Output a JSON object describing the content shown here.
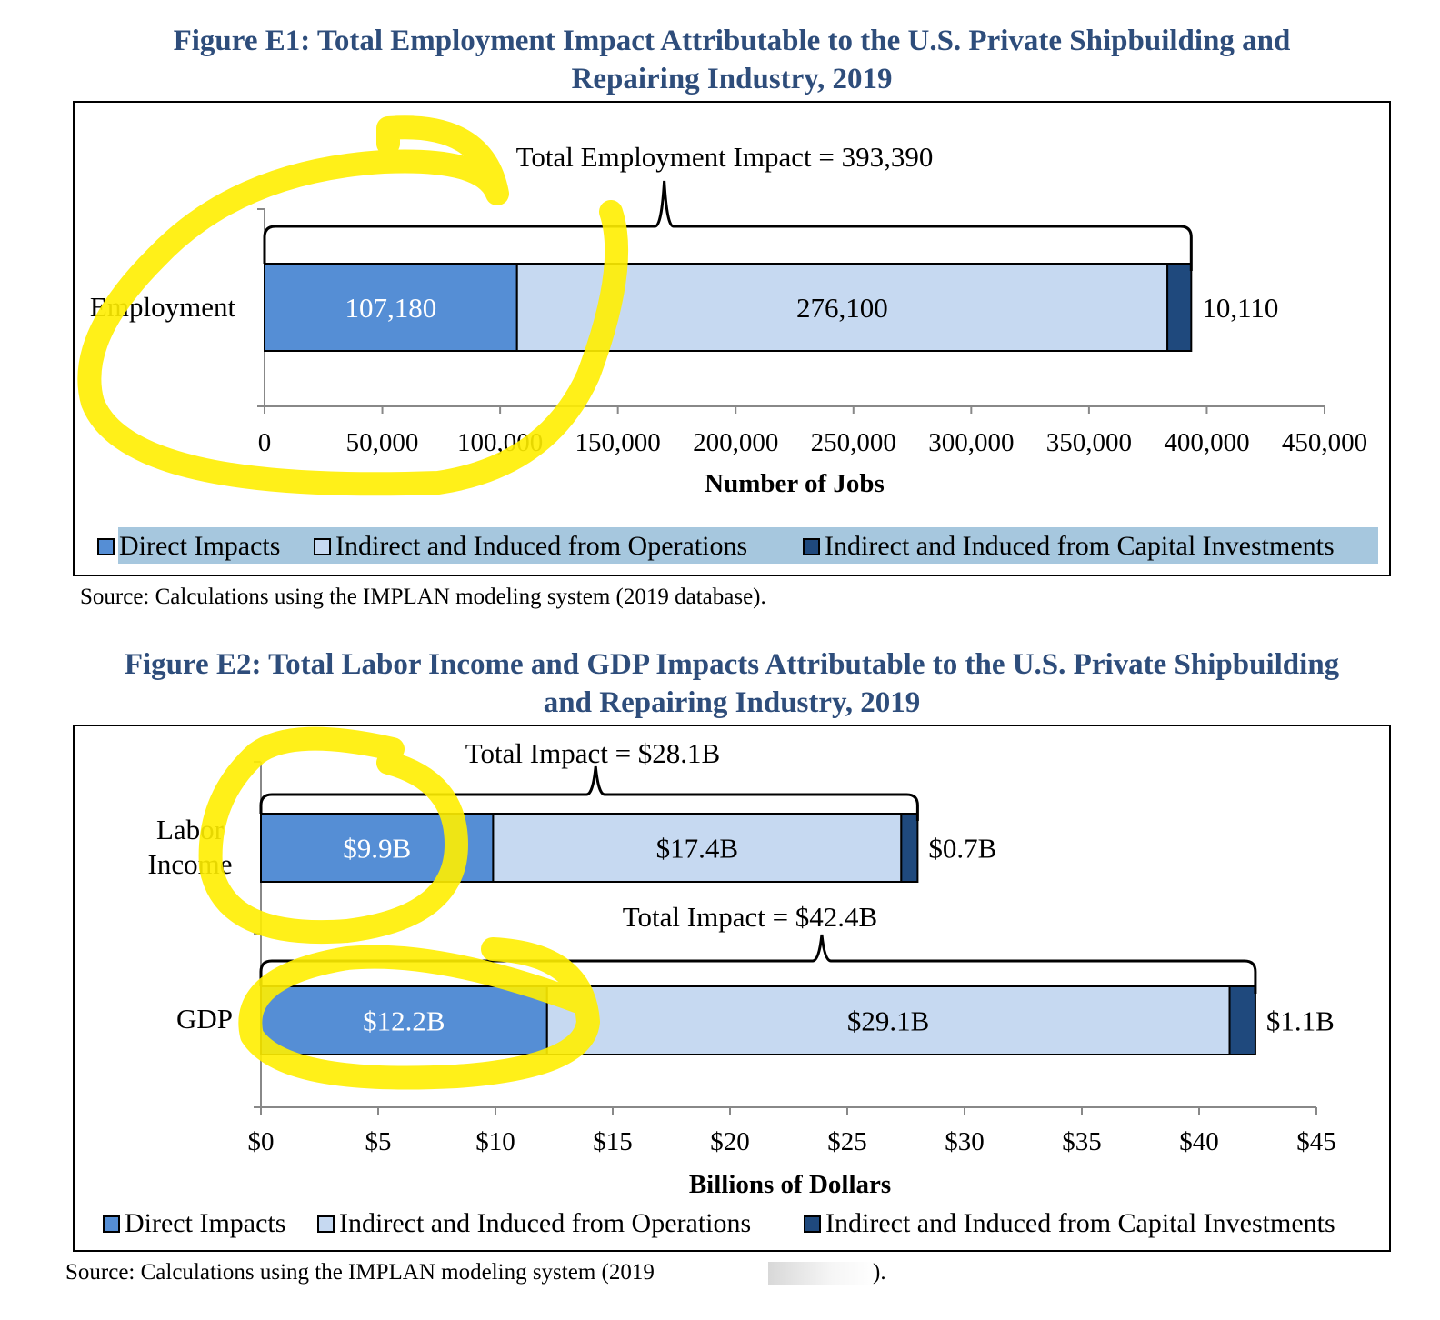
{
  "figure_e1": {
    "title_line1": "Figure E1:  Total Employment Impact Attributable to the U.S. Private Shipbuilding and",
    "title_line2": "Repairing Industry, 2019",
    "source": "Source:  Calculations using the IMPLAN modeling system (2019 database)."
  },
  "figure_e2": {
    "title_line1": "Figure E2:  Total Labor Income and GDP Impacts Attributable to the U.S. Private Shipbuilding",
    "title_line2": "and Repairing Industry, 2019",
    "source": "Source:  Calculations using the IMPLAN modeling system (2019"
  },
  "colors": {
    "direct": "#558ed5",
    "indirect_operations": "#c6d9f1",
    "indirect_capital": "#1f497d",
    "highlight": "#ffee00",
    "title": "#2e4d7b",
    "legend_background": "#a6c7de"
  },
  "chart_data": [
    {
      "type": "bar",
      "orientation": "horizontal",
      "stacked": true,
      "categories": [
        "Employment"
      ],
      "series": [
        {
          "name": "Direct Impacts",
          "values": [
            107180
          ],
          "labels": [
            "107,180"
          ]
        },
        {
          "name": "Indirect and Induced from Operations",
          "values": [
            276100
          ],
          "labels": [
            "276,100"
          ]
        },
        {
          "name": "Indirect and Induced from Capital Investments",
          "values": [
            10110
          ],
          "labels": [
            "10,110"
          ]
        }
      ],
      "totals": [
        {
          "category": "Employment",
          "label": "Total Employment Impact = 393,390"
        }
      ],
      "xlabel": "Number of Jobs",
      "ylabel": "",
      "xlim": [
        0,
        450000
      ],
      "xticks": [
        0,
        50000,
        100000,
        150000,
        200000,
        250000,
        300000,
        350000,
        400000,
        450000
      ],
      "xtick_labels": [
        "0",
        "50,000",
        "100,000",
        "150,000",
        "200,000",
        "250,000",
        "300,000",
        "350,000",
        "400,000",
        "450,000"
      ],
      "grid": false,
      "legend_position": "bottom"
    },
    {
      "type": "bar",
      "orientation": "horizontal",
      "stacked": true,
      "categories": [
        "Labor Income",
        "GDP"
      ],
      "series": [
        {
          "name": "Direct Impacts",
          "values": [
            9.9,
            12.2
          ],
          "labels": [
            "$9.9B",
            "$12.2B"
          ]
        },
        {
          "name": "Indirect and Induced from Operations",
          "values": [
            17.4,
            29.1
          ],
          "labels": [
            "$17.4B",
            "$29.1B"
          ]
        },
        {
          "name": "Indirect and Induced from Capital Investments",
          "values": [
            0.7,
            1.1
          ],
          "labels": [
            "$0.7B",
            "$1.1B"
          ]
        }
      ],
      "totals": [
        {
          "category": "Labor Income",
          "label": "Total Impact = $28.1B"
        },
        {
          "category": "GDP",
          "label": "Total Impact = $42.4B"
        }
      ],
      "xlabel": "Billions of Dollars",
      "ylabel": "",
      "xlim": [
        0,
        45
      ],
      "xticks": [
        0,
        5,
        10,
        15,
        20,
        25,
        30,
        35,
        40,
        45
      ],
      "xtick_labels": [
        "$0",
        "$5",
        "$10",
        "$15",
        "$20",
        "$25",
        "$30",
        "$35",
        "$40",
        "$45"
      ],
      "grid": false,
      "legend_position": "bottom"
    }
  ]
}
